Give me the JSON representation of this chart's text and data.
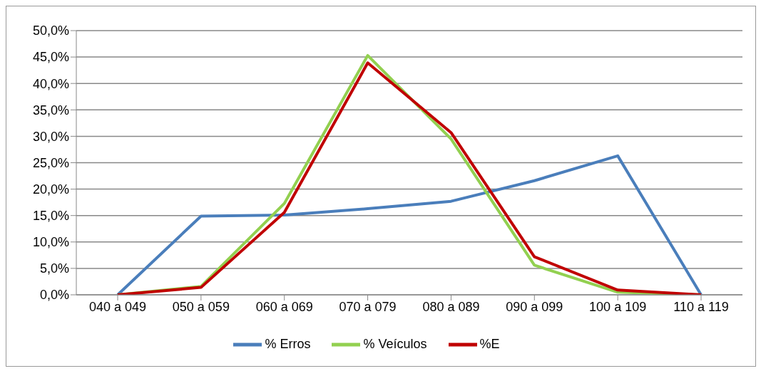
{
  "chart_data": {
    "type": "line",
    "categories": [
      "040 a 049",
      "050 a 059",
      "060 a 069",
      "070 a 079",
      "080 a 089",
      "090 a 099",
      "100 a 109",
      "110 a 119"
    ],
    "series": [
      {
        "name": "% Erros",
        "color": "#4a7ebb",
        "values": [
          0,
          14.9,
          15.1,
          16.3,
          17.7,
          21.6,
          26.3,
          0
        ]
      },
      {
        "name": "% Veículos",
        "color": "#92d050",
        "values": [
          0,
          1.6,
          17.3,
          45.3,
          29.5,
          5.6,
          0.5,
          0
        ]
      },
      {
        "name": "%E",
        "color": "#c00000",
        "values": [
          0,
          1.4,
          15.6,
          43.9,
          30.7,
          7.2,
          0.9,
          0
        ]
      }
    ],
    "ylim": [
      0,
      50
    ],
    "yticks": [
      {
        "value": 0,
        "label": "0,0%"
      },
      {
        "value": 5,
        "label": "5,0%"
      },
      {
        "value": 10,
        "label": "10,0%"
      },
      {
        "value": 15,
        "label": "15,0%"
      },
      {
        "value": 20,
        "label": "20,0%"
      },
      {
        "value": 25,
        "label": "25,0%"
      },
      {
        "value": 30,
        "label": "30,0%"
      },
      {
        "value": 35,
        "label": "35,0%"
      },
      {
        "value": 40,
        "label": "40,0%"
      },
      {
        "value": 45,
        "label": "45,0%"
      },
      {
        "value": 50,
        "label": "50,0%"
      }
    ],
    "grid": "y",
    "legend": "bottom",
    "marker": "none",
    "line_style": "solid"
  }
}
